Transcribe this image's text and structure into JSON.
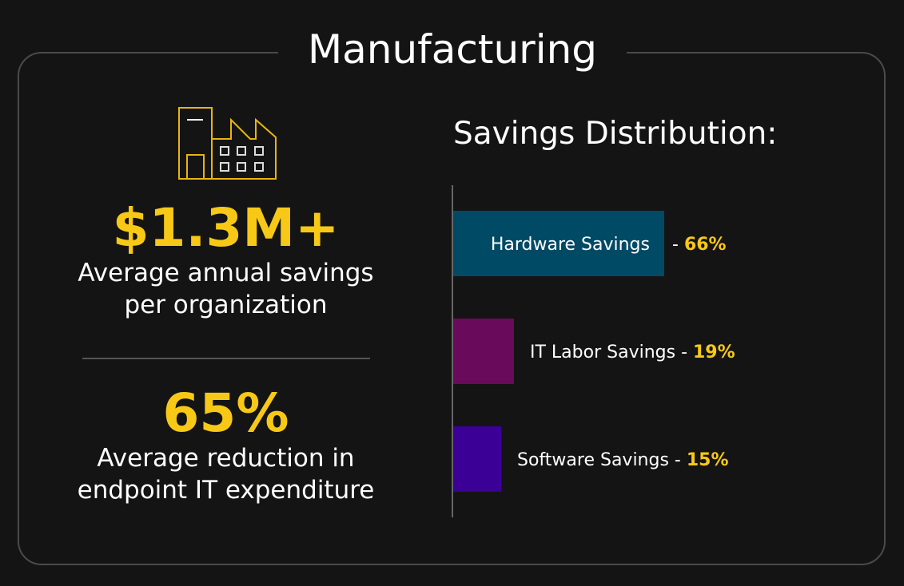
{
  "title": "Manufacturing",
  "icon": "factory-icon",
  "stats": [
    {
      "value": "$1.3M+",
      "line1": "Average annual savings",
      "line2": "per organization"
    },
    {
      "value": "65%",
      "line1": "Average reduction in",
      "line2": "endpoint IT expenditure"
    }
  ],
  "colors": {
    "accent": "#f7c916",
    "background": "#141414"
  },
  "chart_data": {
    "type": "bar",
    "orientation": "horizontal",
    "title": "Savings Distribution:",
    "categories": [
      "Hardware Savings",
      "IT Labor Savings",
      "Software Savings"
    ],
    "values": [
      66,
      19,
      15
    ],
    "value_labels": [
      "66%",
      "19%",
      "15%"
    ],
    "colors": [
      "#014a66",
      "#6a0a5a",
      "#3b0096"
    ],
    "grid": false
  }
}
